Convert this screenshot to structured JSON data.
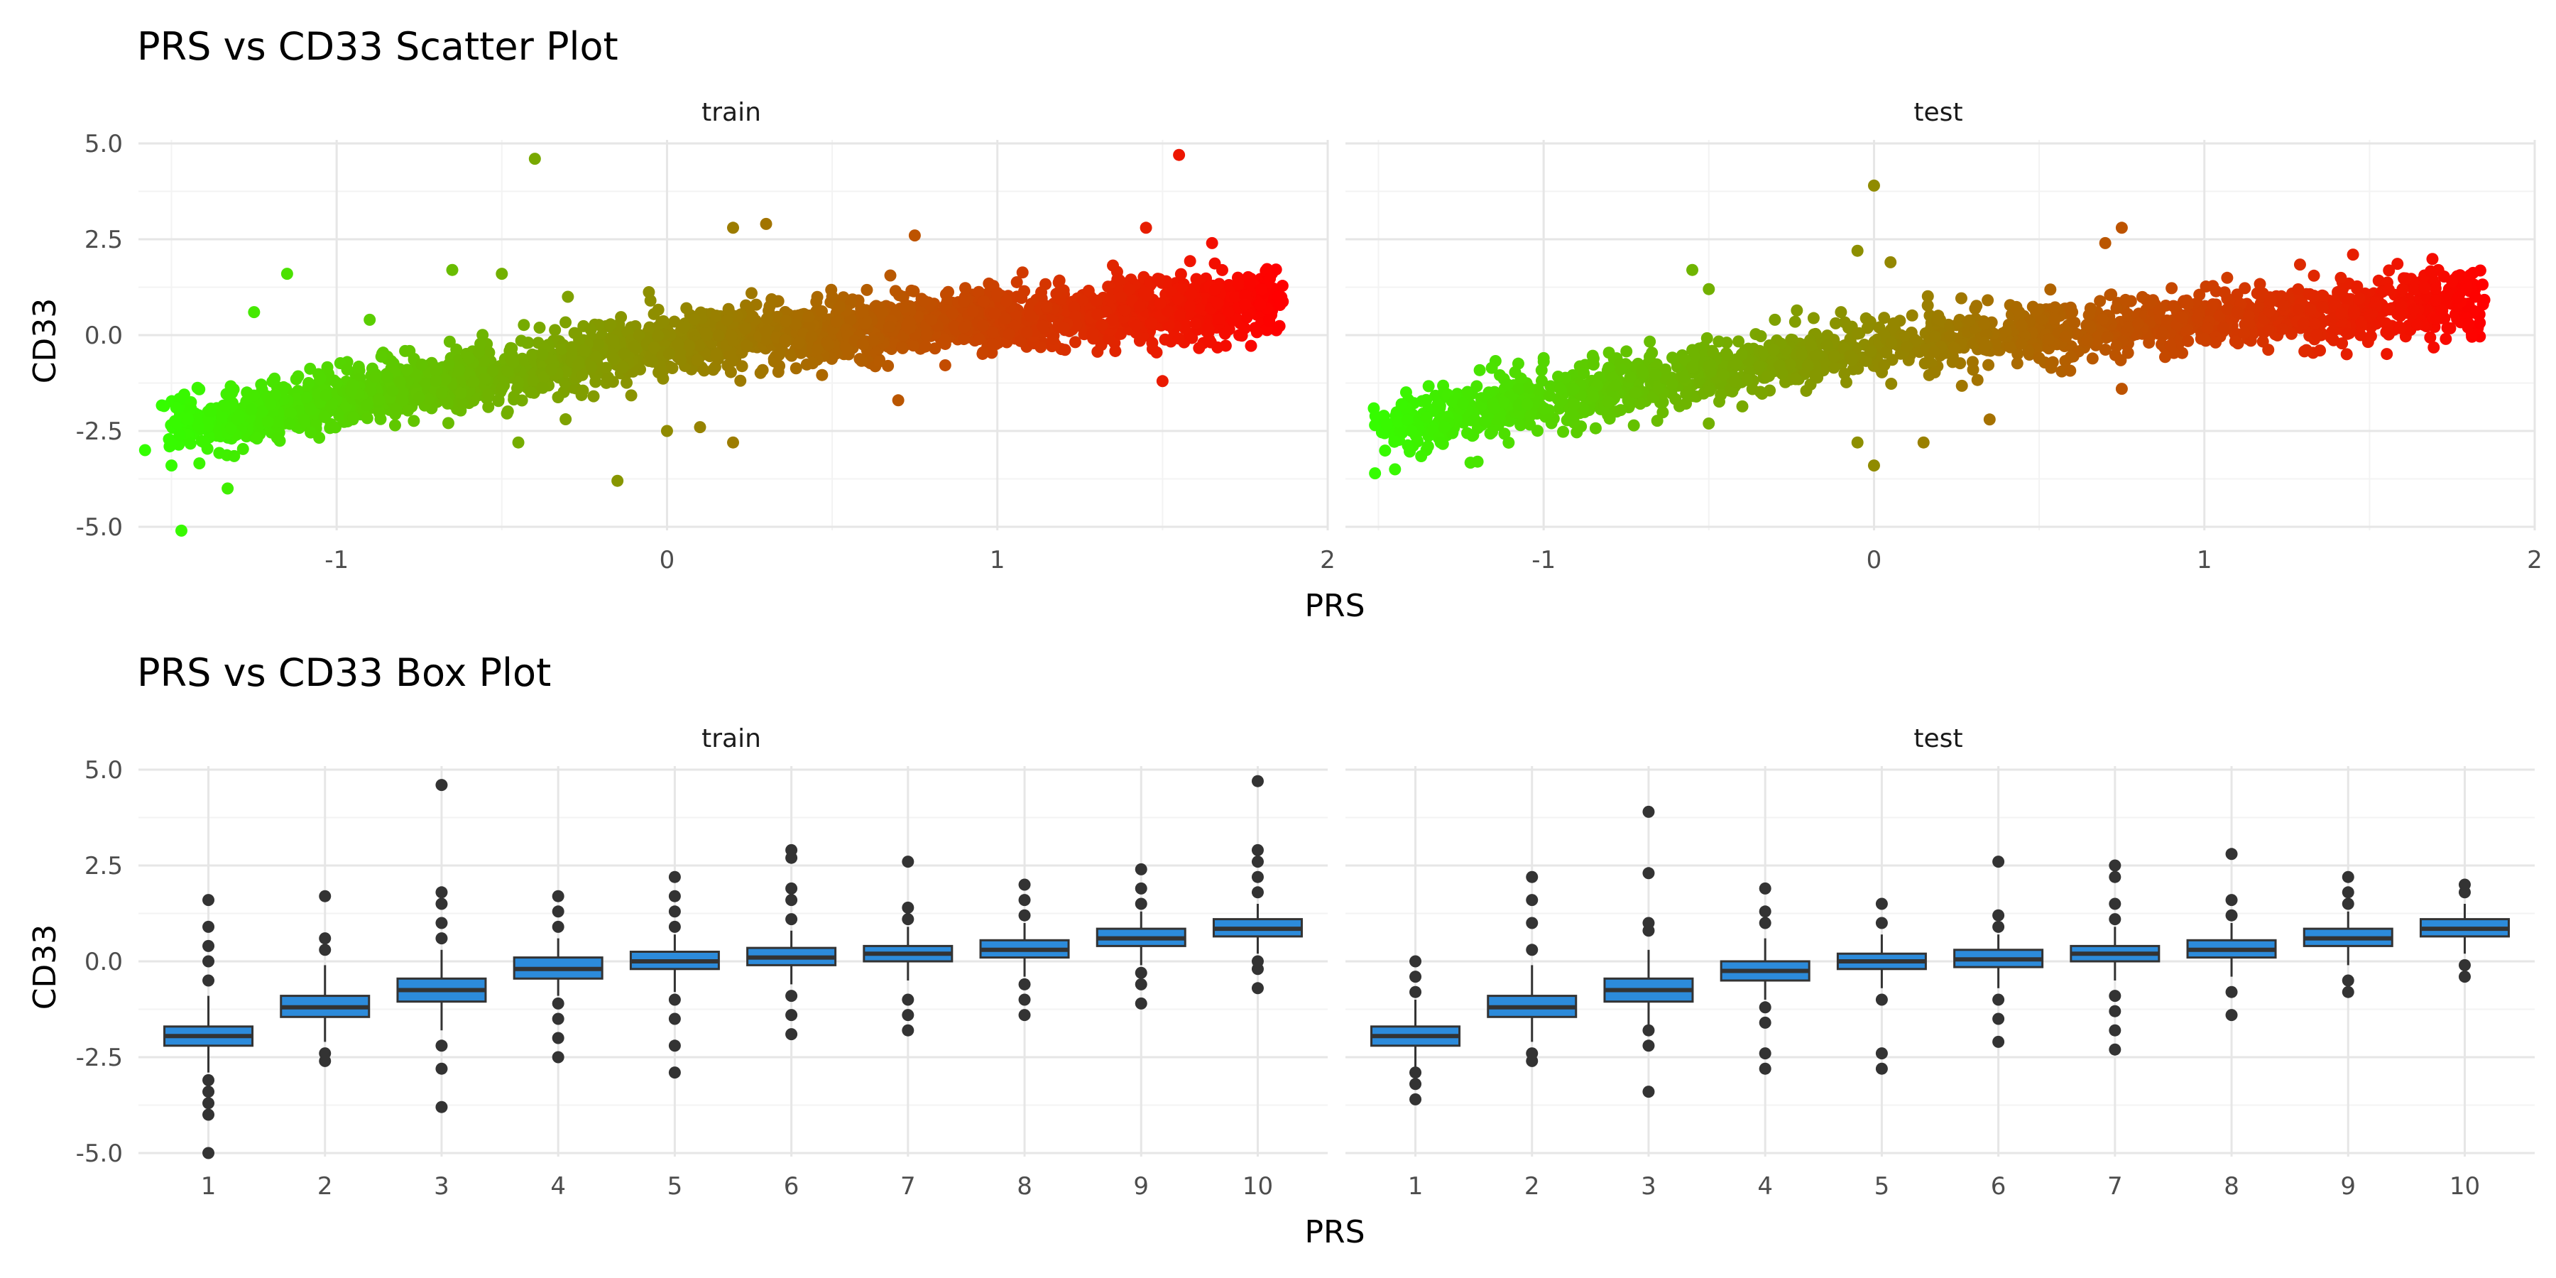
{
  "chart_data": [
    {
      "type": "scatter",
      "title": "PRS vs CD33 Scatter Plot",
      "xlabel": "PRS",
      "ylabel": "CD33",
      "facets": [
        "train",
        "test"
      ],
      "xlim": [
        -1.6,
        2.0
      ],
      "ylim": [
        -5.0,
        5.0
      ],
      "x_ticks": [
        "-1",
        "0",
        "1",
        "2"
      ],
      "y_ticks": [
        "-5.0",
        "-2.5",
        "0.0",
        "2.5",
        "5.0"
      ],
      "color_gradient": [
        "#33ff00",
        "#ff0000"
      ],
      "grid": true,
      "series": [
        {
          "facet": "train",
          "points": [
            {
              "x": -1.58,
              "y": -3.0
            },
            {
              "x": -1.5,
              "y": -3.4
            },
            {
              "x": -1.47,
              "y": -5.1
            },
            {
              "x": -1.45,
              "y": -2.2
            },
            {
              "x": -1.4,
              "y": -2.8
            },
            {
              "x": -1.33,
              "y": -4.0
            },
            {
              "x": -1.3,
              "y": -2.2
            },
            {
              "x": -1.25,
              "y": 0.6
            },
            {
              "x": -1.15,
              "y": 1.6
            },
            {
              "x": -1.2,
              "y": -1.8
            },
            {
              "x": -1.1,
              "y": -2.2
            },
            {
              "x": -1.05,
              "y": -1.1
            },
            {
              "x": -0.95,
              "y": -1.3
            },
            {
              "x": -0.9,
              "y": 0.4
            },
            {
              "x": -0.8,
              "y": -1.7
            },
            {
              "x": -0.65,
              "y": 1.7
            },
            {
              "x": -0.7,
              "y": -1.2
            },
            {
              "x": -0.6,
              "y": -0.6
            },
            {
              "x": -0.5,
              "y": -1.4
            },
            {
              "x": -0.5,
              "y": 1.6
            },
            {
              "x": -0.45,
              "y": -2.8
            },
            {
              "x": -0.4,
              "y": 4.6
            },
            {
              "x": -0.35,
              "y": -0.9
            },
            {
              "x": -0.3,
              "y": 1.0
            },
            {
              "x": -0.25,
              "y": -0.4
            },
            {
              "x": -0.15,
              "y": -3.8
            },
            {
              "x": -0.1,
              "y": -0.3
            },
            {
              "x": -0.05,
              "y": 0.9
            },
            {
              "x": 0.0,
              "y": -2.5
            },
            {
              "x": 0.05,
              "y": 0.2
            },
            {
              "x": 0.1,
              "y": -2.4
            },
            {
              "x": 0.15,
              "y": -0.5
            },
            {
              "x": 0.2,
              "y": 2.8
            },
            {
              "x": 0.2,
              "y": -2.8
            },
            {
              "x": 0.3,
              "y": 2.9
            },
            {
              "x": 0.3,
              "y": 0.1
            },
            {
              "x": 0.4,
              "y": -0.2
            },
            {
              "x": 0.5,
              "y": 1.0
            },
            {
              "x": 0.55,
              "y": -0.5
            },
            {
              "x": 0.6,
              "y": 0.3
            },
            {
              "x": 0.7,
              "y": -1.7
            },
            {
              "x": 0.75,
              "y": 2.6
            },
            {
              "x": 0.8,
              "y": 0.4
            },
            {
              "x": 0.9,
              "y": 0.2
            },
            {
              "x": 1.0,
              "y": 1.1
            },
            {
              "x": 1.1,
              "y": 0.5
            },
            {
              "x": 1.2,
              "y": 0.2
            },
            {
              "x": 1.3,
              "y": 0.9
            },
            {
              "x": 1.35,
              "y": 0.4
            },
            {
              "x": 1.4,
              "y": 1.2
            },
            {
              "x": 1.45,
              "y": 2.8
            },
            {
              "x": 1.5,
              "y": -1.2
            },
            {
              "x": 1.55,
              "y": 4.7
            },
            {
              "x": 1.6,
              "y": 0.3
            },
            {
              "x": 1.65,
              "y": 2.4
            },
            {
              "x": 1.7,
              "y": 0.6
            },
            {
              "x": 1.75,
              "y": 0.8
            },
            {
              "x": 1.8,
              "y": 1.2
            },
            {
              "x": 1.85,
              "y": 1.0
            }
          ]
        },
        {
          "facet": "test",
          "points": [
            {
              "x": -1.45,
              "y": -3.5
            },
            {
              "x": -1.43,
              "y": -1.8
            },
            {
              "x": -1.4,
              "y": -2.5
            },
            {
              "x": -1.35,
              "y": -2.9
            },
            {
              "x": -1.3,
              "y": -2.4
            },
            {
              "x": -1.2,
              "y": -3.3
            },
            {
              "x": -1.15,
              "y": -1.9
            },
            {
              "x": -1.0,
              "y": -0.6
            },
            {
              "x": -1.05,
              "y": -1.8
            },
            {
              "x": -0.95,
              "y": -1.4
            },
            {
              "x": -0.85,
              "y": -1.6
            },
            {
              "x": -0.7,
              "y": -1.0
            },
            {
              "x": -0.55,
              "y": 1.7
            },
            {
              "x": -0.5,
              "y": 1.2
            },
            {
              "x": -0.5,
              "y": -0.8
            },
            {
              "x": -0.4,
              "y": -0.5
            },
            {
              "x": -0.3,
              "y": 0.4
            },
            {
              "x": -0.2,
              "y": -0.8
            },
            {
              "x": -0.1,
              "y": 0.6
            },
            {
              "x": -0.05,
              "y": 2.2
            },
            {
              "x": -0.05,
              "y": -2.8
            },
            {
              "x": 0.0,
              "y": -3.4
            },
            {
              "x": 0.0,
              "y": 3.9
            },
            {
              "x": 0.05,
              "y": 1.9
            },
            {
              "x": 0.1,
              "y": -0.3
            },
            {
              "x": 0.15,
              "y": -2.8
            },
            {
              "x": 0.2,
              "y": 0.4
            },
            {
              "x": 0.3,
              "y": -0.9
            },
            {
              "x": 0.35,
              "y": -2.2
            },
            {
              "x": 0.4,
              "y": 0.1
            },
            {
              "x": 0.5,
              "y": -0.6
            },
            {
              "x": 0.6,
              "y": 0.6
            },
            {
              "x": 0.7,
              "y": 2.4
            },
            {
              "x": 0.75,
              "y": 2.8
            },
            {
              "x": 0.75,
              "y": -1.4
            },
            {
              "x": 0.8,
              "y": 0.3
            },
            {
              "x": 0.95,
              "y": 0.8
            },
            {
              "x": 1.0,
              "y": -0.1
            },
            {
              "x": 1.1,
              "y": 0.6
            },
            {
              "x": 1.2,
              "y": 0.9
            },
            {
              "x": 1.3,
              "y": 0.3
            },
            {
              "x": 1.35,
              "y": -0.4
            },
            {
              "x": 1.45,
              "y": 2.1
            },
            {
              "x": 1.5,
              "y": 0.5
            },
            {
              "x": 1.6,
              "y": 1.2
            },
            {
              "x": 1.7,
              "y": 0.9
            },
            {
              "x": 1.75,
              "y": 1.4
            },
            {
              "x": 1.8,
              "y": 0.3
            },
            {
              "x": 1.82,
              "y": 1.0
            }
          ]
        }
      ]
    },
    {
      "type": "box",
      "title": "PRS vs CD33 Box Plot",
      "xlabel": "PRS",
      "ylabel": "CD33",
      "facets": [
        "train",
        "test"
      ],
      "categories": [
        "1",
        "2",
        "3",
        "4",
        "5",
        "6",
        "7",
        "8",
        "9",
        "10"
      ],
      "ylim": [
        -5.0,
        5.0
      ],
      "y_ticks": [
        "-5.0",
        "-2.5",
        "0.0",
        "2.5",
        "5.0"
      ],
      "fill_color": "#2c8bdb",
      "grid": true,
      "series": [
        {
          "facet": "train",
          "boxes": [
            {
              "q1": -2.2,
              "median": -1.95,
              "q3": -1.7,
              "whisker_low": -2.9,
              "whisker_high": -0.9,
              "outliers": [
                -5.0,
                -4.0,
                -3.7,
                -3.4,
                -3.1,
                -0.5,
                0.0,
                0.4,
                0.9,
                1.6
              ]
            },
            {
              "q1": -1.45,
              "median": -1.2,
              "q3": -0.9,
              "whisker_low": -2.1,
              "whisker_high": -0.1,
              "outliers": [
                -2.6,
                -2.4,
                0.3,
                0.6,
                1.7
              ]
            },
            {
              "q1": -1.05,
              "median": -0.75,
              "q3": -0.45,
              "whisker_low": -1.8,
              "whisker_high": 0.3,
              "outliers": [
                -3.8,
                -2.8,
                -2.2,
                0.6,
                1.0,
                1.5,
                1.8,
                4.6
              ]
            },
            {
              "q1": -0.45,
              "median": -0.2,
              "q3": 0.1,
              "whisker_low": -0.9,
              "whisker_high": 0.6,
              "outliers": [
                -2.5,
                -2.0,
                -1.5,
                -1.1,
                0.9,
                1.3,
                1.7
              ]
            },
            {
              "q1": -0.2,
              "median": 0.0,
              "q3": 0.25,
              "whisker_low": -0.8,
              "whisker_high": 0.7,
              "outliers": [
                -2.9,
                -2.2,
                -1.5,
                -1.0,
                0.9,
                1.3,
                1.7,
                2.2
              ]
            },
            {
              "q1": -0.1,
              "median": 0.1,
              "q3": 0.35,
              "whisker_low": -0.6,
              "whisker_high": 0.8,
              "outliers": [
                -1.9,
                -1.4,
                -0.9,
                1.1,
                1.6,
                1.9,
                2.7,
                2.9
              ]
            },
            {
              "q1": 0.0,
              "median": 0.2,
              "q3": 0.4,
              "whisker_low": -0.5,
              "whisker_high": 0.9,
              "outliers": [
                -1.8,
                -1.4,
                -1.0,
                1.1,
                1.4,
                2.6
              ]
            },
            {
              "q1": 0.1,
              "median": 0.3,
              "q3": 0.55,
              "whisker_low": -0.4,
              "whisker_high": 1.0,
              "outliers": [
                -1.4,
                -1.0,
                -0.6,
                1.2,
                1.6,
                2.0
              ]
            },
            {
              "q1": 0.4,
              "median": 0.6,
              "q3": 0.85,
              "whisker_low": -0.1,
              "whisker_high": 1.3,
              "outliers": [
                -1.1,
                -0.6,
                -0.3,
                1.5,
                1.9,
                2.4
              ]
            },
            {
              "q1": 0.65,
              "median": 0.85,
              "q3": 1.1,
              "whisker_low": 0.2,
              "whisker_high": 1.5,
              "outliers": [
                -0.7,
                -0.2,
                0.0,
                1.8,
                2.2,
                2.6,
                2.9,
                4.7
              ]
            }
          ]
        },
        {
          "facet": "test",
          "boxes": [
            {
              "q1": -2.2,
              "median": -1.95,
              "q3": -1.7,
              "whisker_low": -2.8,
              "whisker_high": -1.0,
              "outliers": [
                -3.6,
                -3.2,
                -2.9,
                -0.8,
                -0.4,
                0.0
              ]
            },
            {
              "q1": -1.45,
              "median": -1.2,
              "q3": -0.9,
              "whisker_low": -2.1,
              "whisker_high": -0.1,
              "outliers": [
                -2.6,
                -2.4,
                0.3,
                1.0,
                1.6,
                2.2
              ]
            },
            {
              "q1": -1.05,
              "median": -0.75,
              "q3": -0.45,
              "whisker_low": -1.7,
              "whisker_high": 0.3,
              "outliers": [
                -3.4,
                -2.2,
                -1.8,
                0.8,
                1.0,
                2.3,
                3.9
              ]
            },
            {
              "q1": -0.5,
              "median": -0.25,
              "q3": 0.0,
              "whisker_low": -1.0,
              "whisker_high": 0.6,
              "outliers": [
                -2.8,
                -2.4,
                -1.6,
                -1.2,
                1.0,
                1.3,
                1.9
              ]
            },
            {
              "q1": -0.2,
              "median": 0.0,
              "q3": 0.2,
              "whisker_low": -0.7,
              "whisker_high": 0.7,
              "outliers": [
                -2.8,
                -2.4,
                -1.0,
                1.0,
                1.5
              ]
            },
            {
              "q1": -0.15,
              "median": 0.05,
              "q3": 0.3,
              "whisker_low": -0.7,
              "whisker_high": 0.7,
              "outliers": [
                -2.1,
                -1.5,
                -1.0,
                0.9,
                1.2,
                2.6
              ]
            },
            {
              "q1": 0.0,
              "median": 0.2,
              "q3": 0.4,
              "whisker_low": -0.5,
              "whisker_high": 0.9,
              "outliers": [
                -2.3,
                -1.8,
                -1.3,
                -0.9,
                1.1,
                1.5,
                2.2,
                2.5
              ]
            },
            {
              "q1": 0.1,
              "median": 0.3,
              "q3": 0.55,
              "whisker_low": -0.4,
              "whisker_high": 1.0,
              "outliers": [
                -1.4,
                -0.8,
                1.2,
                1.6,
                2.8
              ]
            },
            {
              "q1": 0.4,
              "median": 0.6,
              "q3": 0.85,
              "whisker_low": -0.1,
              "whisker_high": 1.3,
              "outliers": [
                -0.8,
                -0.5,
                1.5,
                1.8,
                2.2
              ]
            },
            {
              "q1": 0.65,
              "median": 0.85,
              "q3": 1.1,
              "whisker_low": 0.2,
              "whisker_high": 1.5,
              "outliers": [
                -0.4,
                -0.1,
                1.8,
                2.0
              ]
            }
          ]
        }
      ]
    }
  ]
}
